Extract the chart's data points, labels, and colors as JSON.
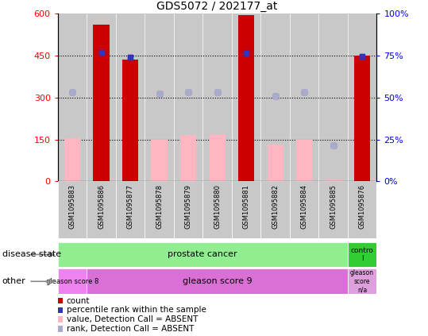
{
  "title": "GDS5072 / 202177_at",
  "samples": [
    "GSM1095883",
    "GSM1095886",
    "GSM1095877",
    "GSM1095878",
    "GSM1095879",
    "GSM1095880",
    "GSM1095881",
    "GSM1095882",
    "GSM1095884",
    "GSM1095885",
    "GSM1095876"
  ],
  "count_values": [
    0,
    560,
    435,
    0,
    0,
    0,
    595,
    0,
    0,
    0,
    450
  ],
  "pink_values": [
    155,
    0,
    0,
    148,
    165,
    168,
    0,
    133,
    148,
    8,
    0
  ],
  "blue_dot_y": [
    320,
    460,
    443,
    313,
    320,
    318,
    457,
    305,
    320,
    130,
    447
  ],
  "light_blue_dot_y": [
    320,
    460,
    443,
    313,
    320,
    318,
    457,
    305,
    320,
    130,
    447
  ],
  "ylim_left": [
    0,
    600
  ],
  "ylim_right": [
    0,
    100
  ],
  "yticks_left": [
    0,
    150,
    300,
    450,
    600
  ],
  "ytick_labels_left": [
    "0",
    "150",
    "300",
    "450",
    "600"
  ],
  "yticks_right": [
    0,
    25,
    50,
    75,
    100
  ],
  "ytick_labels_right": [
    "0%",
    "25%",
    "50%",
    "75%",
    "100%"
  ],
  "disease_color_prostate": "#90EE90",
  "disease_color_control": "#32CD32",
  "other_color_g8": "#EE82EE",
  "other_color_g9": "#DA70D6",
  "other_color_na": "#DDA0DD",
  "bar_color_count": "#CC0000",
  "bar_color_pink": "#FFB6C1",
  "dot_color_blue_dark": "#3333BB",
  "dot_color_blue_light": "#AAAACC",
  "bg_color": "#C8C8C8",
  "legend_items": [
    {
      "label": "count",
      "color": "#CC0000"
    },
    {
      "label": "percentile rank within the sample",
      "color": "#3333BB"
    },
    {
      "label": "value, Detection Call = ABSENT",
      "color": "#FFB6C1"
    },
    {
      "label": "rank, Detection Call = ABSENT",
      "color": "#AAAACC"
    }
  ]
}
